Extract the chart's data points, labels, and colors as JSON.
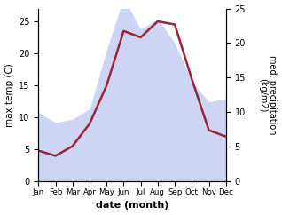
{
  "months": [
    "Jan",
    "Feb",
    "Mar",
    "Apr",
    "May",
    "Jun",
    "Jul",
    "Aug",
    "Sep",
    "Oct",
    "Nov",
    "Dec"
  ],
  "month_positions": [
    1,
    2,
    3,
    4,
    5,
    6,
    7,
    8,
    9,
    10,
    11,
    12
  ],
  "temperature": [
    4.8,
    4.0,
    5.5,
    9.0,
    15.0,
    23.5,
    22.5,
    25.0,
    24.5,
    16.0,
    8.0,
    7.0
  ],
  "precipitation": [
    10.0,
    8.5,
    9.0,
    10.5,
    19.0,
    26.5,
    22.0,
    23.5,
    20.0,
    14.5,
    11.5,
    12.0
  ],
  "temp_color": "#9B2335",
  "precip_fill_color": "#aabbee",
  "precip_alpha": 0.6,
  "ylabel_left": "max temp (C)",
  "ylabel_right": "med. precipitation\n(kg/m2)",
  "xlabel": "date (month)",
  "ylim_left": [
    0,
    27
  ],
  "ylim_right": [
    0,
    25
  ],
  "yticks_left": [
    0,
    5,
    10,
    15,
    20,
    25
  ],
  "yticks_right": [
    0,
    5,
    10,
    15,
    20,
    25
  ],
  "bg_color": "#ffffff"
}
